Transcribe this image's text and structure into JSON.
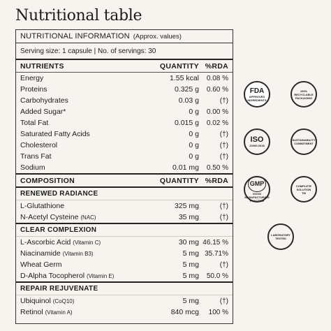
{
  "title": "Nutritional table",
  "table": {
    "header_main": "NUTRITIONAL INFORMATION",
    "header_sub": "(Approx. values)",
    "serving": "Serving size: 1 capsule | No. of servings: 30",
    "nutrients_header": {
      "name": "NUTRIENTS",
      "qty": "QUANTITY",
      "rda": "%RDA"
    },
    "nutrients": [
      {
        "name": "Energy",
        "qty": "1.55 kcal",
        "rda": "0.08 %"
      },
      {
        "name": "Proteins",
        "qty": "0.325 g",
        "rda": "0.60 %"
      },
      {
        "name": "Carbohydrates",
        "qty": "0.03 g",
        "rda": "(†)"
      },
      {
        "name": "Added Sugar*",
        "qty": "0 g",
        "rda": "0.00 %"
      },
      {
        "name": "Total Fat",
        "qty": "0.015 g",
        "rda": "0.02 %"
      },
      {
        "name": "Saturated Fatty Acids",
        "qty": "0 g",
        "rda": "(†)"
      },
      {
        "name": "Cholesterol",
        "qty": "0 g",
        "rda": "(†)"
      },
      {
        "name": "Trans Fat",
        "qty": "0 g",
        "rda": "(†)"
      },
      {
        "name": "Sodium",
        "qty": "0.01 mg",
        "rda": "0.50 %"
      }
    ],
    "composition_header": {
      "name": "COMPOSITION",
      "qty": "QUANTITY",
      "rda": "%RDA"
    },
    "sections": [
      {
        "title": "RENEWED RADIANCE",
        "items": [
          {
            "name": "L-Glutathione",
            "note": "",
            "qty": "325 mg",
            "rda": "(†)"
          },
          {
            "name": "N-Acetyl Cysteine",
            "note": "(NAC)",
            "qty": "35 mg",
            "rda": "(†)"
          }
        ]
      },
      {
        "title": "CLEAR COMPLEXION",
        "items": [
          {
            "name": "L-Ascorbic Acid",
            "note": "(Vitamin C)",
            "qty": "30 mg",
            "rda": "46.15 %"
          },
          {
            "name": "Niacinamide",
            "note": "(Vitamin B3)",
            "qty": "5 mg",
            "rda": "35.71%"
          },
          {
            "name": "Wheat Germ",
            "note": "",
            "qty": "5 mg",
            "rda": "(†)"
          },
          {
            "name": "D-Alpha Tocopherol",
            "note": "(Vitamin E)",
            "qty": "5 mg",
            "rda": "50.0 %"
          }
        ]
      },
      {
        "title": "REPAIR REJUVENATE",
        "items": [
          {
            "name": "Ubiquinol",
            "note": "(CoQ10)",
            "qty": "5 mg",
            "rda": "(†)"
          },
          {
            "name": "Retinol",
            "note": "(Vitamin A)",
            "qty": "840 mcg",
            "rda": "100 %"
          }
        ]
      }
    ]
  },
  "badges": {
    "fda": {
      "big": "FDA",
      "small": "APPROVED INGREDIENTS",
      "icon": "fda-badge-icon"
    },
    "recyclable": {
      "text": "100% RECYCLABLE PACKAGING",
      "icon": "recyclable-badge-icon"
    },
    "iso": {
      "big": "ISO",
      "small": "22000:2018",
      "icon": "iso-badge-icon"
    },
    "sustainability": {
      "text": "SUSTAINABILITY COMMITMENT",
      "icon": "sustainability-badge-icon"
    },
    "gmp": {
      "big": "GMP",
      "small": "GOOD MANUFACTURING PRACTICE",
      "icon": "gmp-badge-icon"
    },
    "complete": {
      "text": "COMPLETE SOLUTION",
      "tm": "TM",
      "icon": "complete-solution-badge-icon"
    },
    "lab": {
      "text": "LABORATORY TESTED",
      "icon": "lab-tested-badge-icon"
    }
  }
}
